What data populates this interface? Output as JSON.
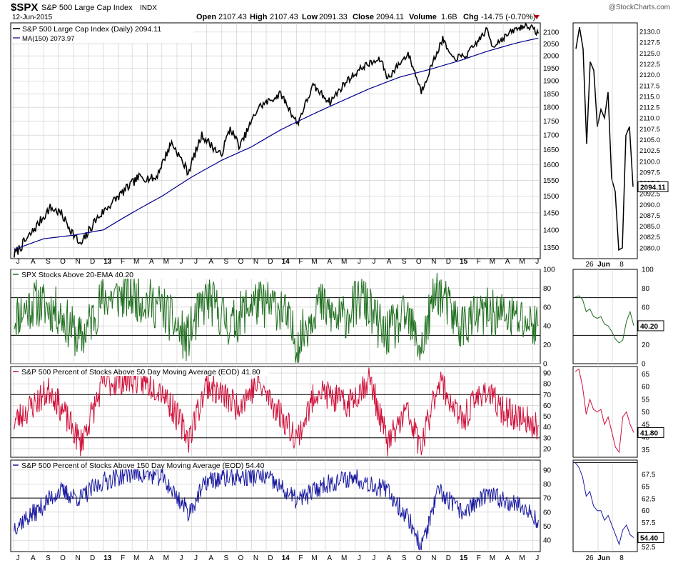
{
  "header": {
    "symbol": "$SPX",
    "name": "S&P 500 Large Cap Index",
    "exchange": "INDX",
    "date": "12-Jun-2015",
    "watermark": "@StockCharts.com",
    "quote": {
      "open_label": "Open",
      "open": "2107.43",
      "high_label": "High",
      "high": "2107.43",
      "low_label": "Low",
      "low": "2091.33",
      "close_label": "Close",
      "close": "2094.11",
      "volume_label": "Volume",
      "volume": "1.6B",
      "chg_label": "Chg",
      "chg": "-14.75 (-0.70%)"
    }
  },
  "colors": {
    "price": "#000000",
    "ma": "#00008b",
    "ema20": "#1f6f1f",
    "pct50": "#d0103a",
    "pct150": "#1a1aa0",
    "grid": "#c8c8c8",
    "ref": "#000000"
  },
  "x_labels": {
    "main": [
      "J",
      "A",
      "S",
      "O",
      "N",
      "D",
      "13",
      "F",
      "M",
      "A",
      "M",
      "J",
      "J",
      "A",
      "S",
      "O",
      "N",
      "D",
      "14",
      "F",
      "M",
      "A",
      "M",
      "J",
      "J",
      "A",
      "S",
      "O",
      "N",
      "D",
      "15",
      "F",
      "M",
      "A",
      "M",
      "J"
    ],
    "zoom": [
      "26",
      "Jun",
      "8"
    ]
  },
  "chart_data": [
    {
      "type": "line",
      "title": "S&P 500 Large Cap Index (Daily) 2094.11",
      "series": [
        {
          "name": "S&P 500 Large Cap Index (Daily) 2094.11",
          "label_value": "2094.11",
          "x": [
            "2012-07-02",
            "2012-08-01",
            "2012-09-14",
            "2012-10-05",
            "2012-11-15",
            "2012-12-14",
            "2013-01-15",
            "2013-02-15",
            "2013-03-15",
            "2013-04-18",
            "2013-05-21",
            "2013-06-24",
            "2013-07-22",
            "2013-08-30",
            "2013-09-18",
            "2013-10-08",
            "2013-11-15",
            "2013-12-31",
            "2014-02-03",
            "2014-03-07",
            "2014-04-11",
            "2014-05-15",
            "2014-06-20",
            "2014-07-24",
            "2014-08-07",
            "2014-09-18",
            "2014-10-15",
            "2014-11-28",
            "2014-12-16",
            "2015-01-15",
            "2015-02-27",
            "2015-03-10",
            "2015-04-24",
            "2015-05-21",
            "2015-06-12"
          ],
          "y": [
            1330,
            1380,
            1465,
            1450,
            1355,
            1425,
            1475,
            1520,
            1560,
            1555,
            1675,
            1575,
            1700,
            1630,
            1725,
            1660,
            1800,
            1850,
            1740,
            1880,
            1820,
            1900,
            1960,
            1985,
            1910,
            2010,
            1860,
            2070,
            1990,
            2000,
            2110,
            2040,
            2110,
            2130,
            2094
          ]
        },
        {
          "name": "MA(150) 2073.97",
          "label_value": "2073.97",
          "x": [
            "2012-07-02",
            "2012-09-01",
            "2012-11-01",
            "2013-01-01",
            "2013-03-01",
            "2013-05-01",
            "2013-07-01",
            "2013-09-01",
            "2013-11-01",
            "2014-01-01",
            "2014-03-01",
            "2014-05-01",
            "2014-07-01",
            "2014-09-01",
            "2014-11-01",
            "2015-01-01",
            "2015-03-01",
            "2015-05-01",
            "2015-06-12"
          ],
          "y": [
            1345,
            1375,
            1385,
            1400,
            1450,
            1500,
            1560,
            1615,
            1660,
            1720,
            1770,
            1820,
            1870,
            1915,
            1945,
            1980,
            2020,
            2055,
            2074
          ]
        }
      ],
      "y_ticks": [
        1350,
        1400,
        1450,
        1500,
        1550,
        1600,
        1650,
        1700,
        1750,
        1800,
        1850,
        1900,
        1950,
        2000,
        2050,
        2100
      ],
      "ylim": [
        1320,
        2140
      ],
      "scale": "log",
      "legend": "top-left",
      "grid": true
    },
    {
      "type": "line",
      "title": "S&P 500 Large Cap Index (Daily) zoom",
      "series": [
        {
          "name": "price-zoom",
          "x": [
            "2015-05-20",
            "2015-05-21",
            "2015-05-22",
            "2015-05-26",
            "2015-05-27",
            "2015-05-28",
            "2015-05-29",
            "2015-06-01",
            "2015-06-02",
            "2015-06-03",
            "2015-06-04",
            "2015-06-05",
            "2015-06-08",
            "2015-06-09",
            "2015-06-10",
            "2015-06-11",
            "2015-06-12"
          ],
          "y": [
            2126,
            2131,
            2126,
            2104,
            2123,
            2121,
            2108,
            2112,
            2110,
            2116,
            2096,
            2093,
            2079.5,
            2080,
            2106,
            2108,
            2094.11
          ]
        }
      ],
      "y_ticks": [
        2080.0,
        2082.5,
        2085.0,
        2087.5,
        2090.0,
        2092.5,
        2095.0,
        2097.5,
        2100.0,
        2102.5,
        2105.0,
        2107.5,
        2110.0,
        2112.5,
        2115.0,
        2117.5,
        2120.0,
        2122.5,
        2125.0,
        2127.5,
        2130.0
      ],
      "ylim": [
        2077.5,
        2132
      ],
      "last_value": "2094.11"
    },
    {
      "type": "line",
      "title": "SPX Stocks Above 20-EMA 40.20",
      "series": [
        {
          "name": "SPX Stocks Above 20-EMA 40.20",
          "value": 40.2,
          "volatility": 26,
          "seed": 11,
          "x": [
            "2012-07-02",
            "2012-08-15",
            "2012-10-01",
            "2012-11-15",
            "2013-01-01",
            "2013-03-01",
            "2013-05-01",
            "2013-06-20",
            "2013-08-01",
            "2013-09-20",
            "2013-11-01",
            "2014-01-01",
            "2014-02-03",
            "2014-03-15",
            "2014-05-01",
            "2014-06-15",
            "2014-08-01",
            "2014-09-15",
            "2014-10-15",
            "2014-11-15",
            "2015-01-01",
            "2015-03-01",
            "2015-04-15",
            "2015-06-12"
          ],
          "y": [
            50,
            65,
            55,
            25,
            70,
            72,
            60,
            25,
            70,
            40,
            65,
            60,
            20,
            65,
            45,
            70,
            30,
            50,
            15,
            80,
            40,
            55,
            50,
            40
          ]
        }
      ],
      "y_ticks": [
        0,
        20,
        40,
        60,
        80,
        100
      ],
      "ref_lines": [
        70,
        30
      ],
      "ylim": [
        0,
        100
      ],
      "zoom_y": [
        71,
        72,
        68,
        55,
        58,
        50,
        48,
        50,
        42,
        40,
        34,
        26,
        22,
        25,
        45,
        55,
        40.2
      ],
      "zoom_ylim": [
        0,
        100
      ],
      "zoom_ticks": [
        0,
        20,
        40,
        60,
        80,
        100
      ],
      "last_value": "40.20"
    },
    {
      "type": "line",
      "title": "S&P 500 Percent of Stocks Above 50 Day Moving Average (EOD) 41.80",
      "series": [
        {
          "name": "S&P 500 Percent of Stocks Above 50 Day Moving Average (EOD) 41.80",
          "value": 41.8,
          "volatility": 14,
          "seed": 23,
          "x": [
            "2012-07-02",
            "2012-09-15",
            "2012-11-15",
            "2013-01-01",
            "2013-03-01",
            "2013-05-01",
            "2013-06-25",
            "2013-08-01",
            "2013-10-01",
            "2013-11-15",
            "2014-02-03",
            "2014-03-15",
            "2014-05-15",
            "2014-07-01",
            "2014-08-07",
            "2014-09-15",
            "2014-10-15",
            "2014-11-20",
            "2015-01-05",
            "2015-02-20",
            "2015-04-01",
            "2015-06-12"
          ],
          "y": [
            45,
            75,
            25,
            80,
            85,
            75,
            30,
            80,
            60,
            80,
            30,
            75,
            60,
            85,
            25,
            55,
            20,
            85,
            45,
            75,
            55,
            41.8
          ]
        }
      ],
      "y_ticks": [
        20,
        30,
        40,
        50,
        60,
        70,
        80,
        90
      ],
      "ref_lines": [
        70,
        30
      ],
      "ylim": [
        12,
        96
      ],
      "zoom_y": [
        66,
        67,
        60,
        49,
        55,
        51,
        50,
        51,
        45,
        48,
        42,
        36,
        34,
        48,
        50,
        45,
        41.8
      ],
      "zoom_ylim": [
        32,
        68
      ],
      "zoom_ticks": [
        35,
        40,
        45,
        50,
        55,
        60,
        65
      ],
      "last_value": "41.80"
    },
    {
      "type": "line",
      "title": "S&P 500 Percent of Stocks Above 150 Day Moving Average (EOD) 54.40",
      "series": [
        {
          "name": "S&P 500 Percent of Stocks Above 150 Day Moving Average (EOD) 54.40",
          "value": 54.4,
          "volatility": 7,
          "seed": 37,
          "x": [
            "2012-07-02",
            "2012-08-15",
            "2012-10-01",
            "2012-11-15",
            "2013-01-01",
            "2013-03-01",
            "2013-05-01",
            "2013-06-25",
            "2013-08-01",
            "2013-10-01",
            "2013-12-01",
            "2014-02-03",
            "2014-04-01",
            "2014-06-01",
            "2014-08-07",
            "2014-09-20",
            "2014-10-15",
            "2014-11-20",
            "2015-01-05",
            "2015-03-01",
            "2015-05-01",
            "2015-06-12"
          ],
          "y": [
            50,
            60,
            75,
            70,
            82,
            88,
            85,
            60,
            82,
            85,
            85,
            68,
            80,
            85,
            75,
            55,
            35,
            75,
            60,
            72,
            66,
            54.4
          ]
        }
      ],
      "y_ticks": [
        40,
        50,
        60,
        70,
        80,
        90
      ],
      "ref_lines": [
        70
      ],
      "ylim": [
        32,
        97
      ],
      "zoom_y": [
        70,
        69,
        67,
        63,
        64,
        61,
        60,
        60,
        58,
        59,
        57,
        55,
        53,
        56,
        57,
        55,
        54.4
      ],
      "zoom_ylim": [
        51.5,
        70.5
      ],
      "zoom_ticks": [
        52.5,
        55.0,
        57.5,
        60.0,
        62.5,
        65.0,
        67.5
      ],
      "last_value": "54.40"
    }
  ]
}
